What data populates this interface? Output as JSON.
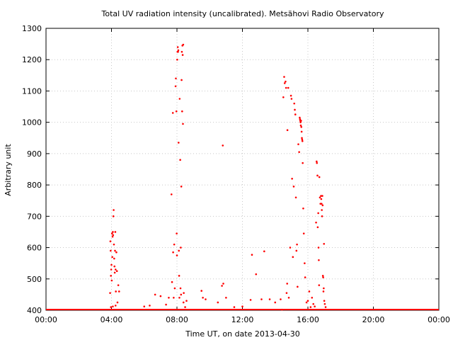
{
  "chart_data": {
    "type": "scatter",
    "title": "Total UV radiation intensity (uncalibrated). Metsähovi Radio Observatory",
    "xlabel": "Time UT, on date 2013-04-30",
    "ylabel": "Arbitrary unit",
    "xlim": [
      "00:00",
      "24:00"
    ],
    "ylim": [
      400,
      1300
    ],
    "x_ticks": [
      "00:00",
      "04:00",
      "08:00",
      "12:00",
      "16:00",
      "20:00",
      "00:00"
    ],
    "y_ticks": [
      400,
      500,
      600,
      700,
      800,
      900,
      1000,
      1100,
      1200,
      1300
    ],
    "grid": true,
    "legend": "none",
    "series": [
      {
        "color": "#ff0000",
        "marker": "dot",
        "baseline": {
          "value": 400,
          "x_range": [
            "00:00",
            "24:00"
          ]
        },
        "points": [
          [
            "03:55",
            455
          ],
          [
            "03:56",
            620
          ],
          [
            "03:57",
            590
          ],
          [
            "03:58",
            510
          ],
          [
            "03:59",
            530
          ],
          [
            "04:00",
            545
          ],
          [
            "04:01",
            495
          ],
          [
            "04:02",
            645
          ],
          [
            "04:03",
            570
          ],
          [
            "04:04",
            635
          ],
          [
            "04:05",
            650
          ],
          [
            "04:06",
            640
          ],
          [
            "04:07",
            700
          ],
          [
            "04:08",
            720
          ],
          [
            "04:09",
            610
          ],
          [
            "04:10",
            565
          ],
          [
            "04:11",
            540
          ],
          [
            "04:12",
            520
          ],
          [
            "04:13",
            590
          ],
          [
            "04:14",
            650
          ],
          [
            "04:15",
            530
          ],
          [
            "04:16",
            460
          ],
          [
            "04:18",
            585
          ],
          [
            "04:20",
            525
          ],
          [
            "04:22",
            425
          ],
          [
            "04:25",
            480
          ],
          [
            "04:28",
            460
          ],
          [
            "04:15",
            415
          ],
          [
            "04:05",
            412
          ],
          [
            "03:58",
            410
          ],
          [
            "06:00",
            412
          ],
          [
            "06:20",
            415
          ],
          [
            "06:40",
            450
          ],
          [
            "07:00",
            445
          ],
          [
            "07:20",
            418
          ],
          [
            "07:30",
            440
          ],
          [
            "07:40",
            770
          ],
          [
            "07:42",
            490
          ],
          [
            "07:45",
            1030
          ],
          [
            "07:46",
            585
          ],
          [
            "07:48",
            440
          ],
          [
            "07:50",
            610
          ],
          [
            "07:52",
            470
          ],
          [
            "07:55",
            1115
          ],
          [
            "07:56",
            1140
          ],
          [
            "07:58",
            1035
          ],
          [
            "07:59",
            645
          ],
          [
            "08:00",
            575
          ],
          [
            "08:01",
            1200
          ],
          [
            "08:02",
            1225
          ],
          [
            "08:03",
            1240
          ],
          [
            "08:04",
            1225
          ],
          [
            "08:05",
            1230
          ],
          [
            "08:06",
            935
          ],
          [
            "08:07",
            590
          ],
          [
            "08:08",
            510
          ],
          [
            "08:09",
            440
          ],
          [
            "08:10",
            1075
          ],
          [
            "08:12",
            880
          ],
          [
            "08:13",
            470
          ],
          [
            "08:14",
            600
          ],
          [
            "08:15",
            450
          ],
          [
            "08:16",
            795
          ],
          [
            "08:17",
            1135
          ],
          [
            "08:18",
            1225
          ],
          [
            "08:19",
            1035
          ],
          [
            "08:20",
            1245
          ],
          [
            "08:21",
            1215
          ],
          [
            "08:22",
            995
          ],
          [
            "08:23",
            1248
          ],
          [
            "08:24",
            425
          ],
          [
            "08:25",
            455
          ],
          [
            "08:30",
            410
          ],
          [
            "08:35",
            430
          ],
          [
            "09:30",
            462
          ],
          [
            "09:35",
            440
          ],
          [
            "09:45",
            435
          ],
          [
            "10:30",
            425
          ],
          [
            "10:45",
            478
          ],
          [
            "10:48",
            926
          ],
          [
            "10:50",
            485
          ],
          [
            "11:00",
            440
          ],
          [
            "11:30",
            410
          ],
          [
            "12:00",
            412
          ],
          [
            "12:30",
            433
          ],
          [
            "12:35",
            577
          ],
          [
            "12:50",
            515
          ],
          [
            "13:20",
            588
          ],
          [
            "13:10",
            435
          ],
          [
            "13:40",
            435
          ],
          [
            "14:00",
            425
          ],
          [
            "14:20",
            435
          ],
          [
            "14:25",
            402
          ],
          [
            "14:30",
            1080
          ],
          [
            "14:33",
            1145
          ],
          [
            "14:35",
            1125
          ],
          [
            "14:38",
            1130
          ],
          [
            "14:40",
            1110
          ],
          [
            "14:42",
            455
          ],
          [
            "14:44",
            485
          ],
          [
            "14:45",
            975
          ],
          [
            "14:48",
            1110
          ],
          [
            "14:50",
            440
          ],
          [
            "14:55",
            600
          ],
          [
            "14:58",
            1085
          ],
          [
            "15:00",
            1075
          ],
          [
            "15:02",
            820
          ],
          [
            "15:05",
            570
          ],
          [
            "15:08",
            795
          ],
          [
            "15:10",
            1060
          ],
          [
            "15:12",
            1040
          ],
          [
            "15:14",
            1025
          ],
          [
            "15:16",
            760
          ],
          [
            "15:18",
            590
          ],
          [
            "15:20",
            610
          ],
          [
            "15:22",
            475
          ],
          [
            "15:25",
            930
          ],
          [
            "15:28",
            905
          ],
          [
            "15:30",
            1015
          ],
          [
            "15:31",
            1010
          ],
          [
            "15:32",
            1005
          ],
          [
            "15:33",
            1000
          ],
          [
            "15:34",
            990
          ],
          [
            "15:35",
            1005
          ],
          [
            "15:36",
            985
          ],
          [
            "15:37",
            970
          ],
          [
            "15:38",
            950
          ],
          [
            "15:39",
            945
          ],
          [
            "15:40",
            940
          ],
          [
            "15:41",
            870
          ],
          [
            "15:43",
            725
          ],
          [
            "15:45",
            645
          ],
          [
            "15:48",
            550
          ],
          [
            "15:50",
            505
          ],
          [
            "15:55",
            425
          ],
          [
            "16:00",
            430
          ],
          [
            "16:05",
            460
          ],
          [
            "16:10",
            410
          ],
          [
            "16:15",
            440
          ],
          [
            "16:20",
            420
          ],
          [
            "16:25",
            412
          ],
          [
            "16:30",
            680
          ],
          [
            "16:32",
            875
          ],
          [
            "16:33",
            870
          ],
          [
            "16:35",
            830
          ],
          [
            "16:36",
            665
          ],
          [
            "16:38",
            710
          ],
          [
            "16:39",
            600
          ],
          [
            "16:40",
            560
          ],
          [
            "16:41",
            480
          ],
          [
            "16:42",
            825
          ],
          [
            "16:44",
            760
          ],
          [
            "16:46",
            740
          ],
          [
            "16:48",
            765
          ],
          [
            "16:49",
            755
          ],
          [
            "16:50",
            740
          ],
          [
            "16:51",
            720
          ],
          [
            "16:52",
            700
          ],
          [
            "16:53",
            765
          ],
          [
            "16:54",
            735
          ],
          [
            "16:55",
            510
          ],
          [
            "16:56",
            505
          ],
          [
            "16:57",
            460
          ],
          [
            "16:58",
            470
          ],
          [
            "16:59",
            612
          ],
          [
            "17:00",
            430
          ],
          [
            "17:02",
            420
          ],
          [
            "17:05",
            410
          ]
        ]
      }
    ]
  }
}
